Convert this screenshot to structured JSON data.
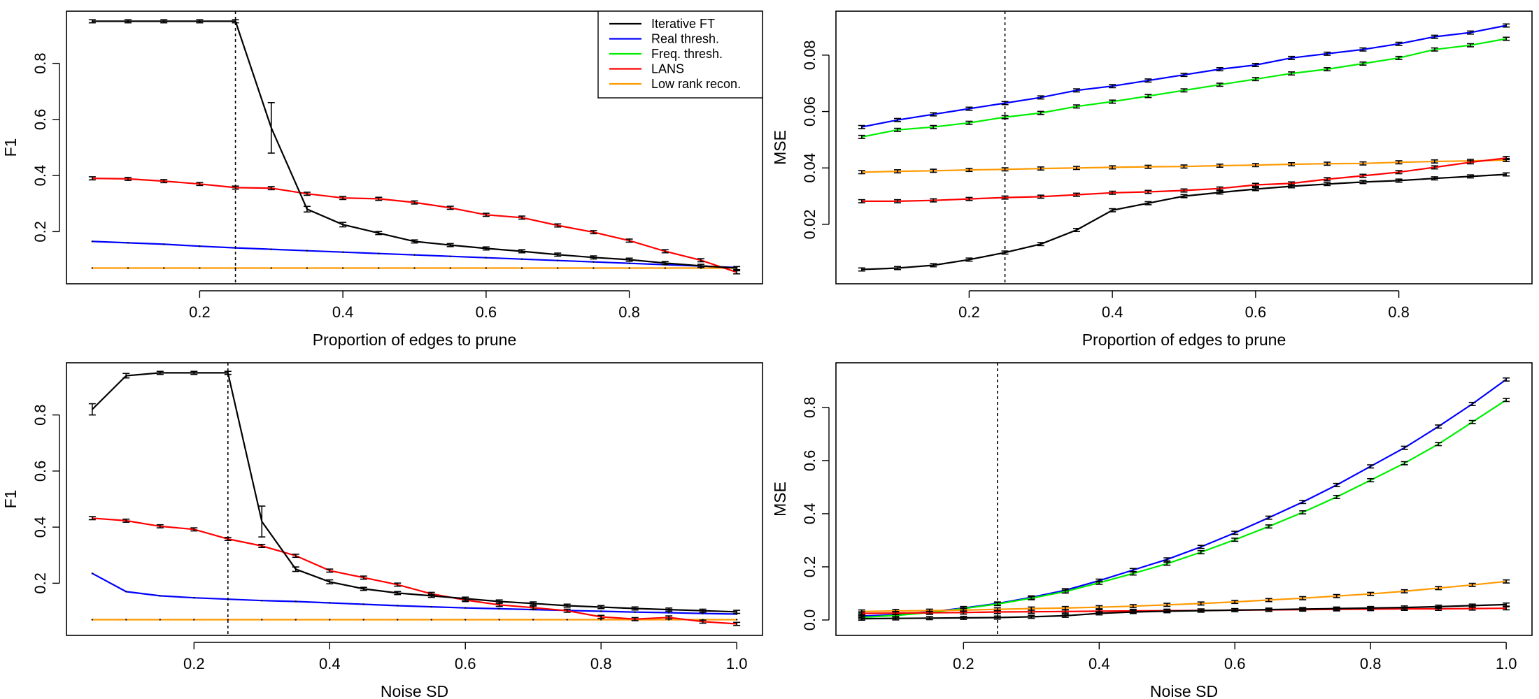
{
  "figure": {
    "reference_line_style": "dotted",
    "colors": {
      "Iterative FT": "#000000",
      "Real thresh.": "#0000ff",
      "Freq. thresh.": "#00ee00",
      "LANS": "#ff0000",
      "Low rank recon.": "#ff9900"
    }
  },
  "chart_data": [
    {
      "id": "tl",
      "type": "line",
      "xlabel": "Proportion of edges to prune",
      "ylabel": "F1",
      "xlim": [
        0.05,
        0.95
      ],
      "ylim": [
        0.05,
        0.95
      ],
      "xticks": [
        0.2,
        0.4,
        0.6,
        0.8
      ],
      "xtick_labels": [
        "0.2",
        "0.4",
        "0.6",
        "0.8"
      ],
      "yticks": [
        0.2,
        0.4,
        0.6,
        0.8
      ],
      "ytick_labels": [
        "0.2",
        "0.4",
        "0.6",
        "0.8"
      ],
      "vline": 0.25,
      "legend": {
        "position": "top-right",
        "entries": [
          "Iterative FT",
          "Real thresh.",
          "Freq. thresh.",
          "LANS",
          "Low rank recon."
        ]
      },
      "x": [
        0.05,
        0.1,
        0.15,
        0.2,
        0.25,
        0.3,
        0.35,
        0.4,
        0.45,
        0.5,
        0.55,
        0.6,
        0.65,
        0.7,
        0.75,
        0.8,
        0.85,
        0.9,
        0.95
      ],
      "series": [
        {
          "name": "Low rank recon.",
          "values": [
            0.07,
            0.07,
            0.07,
            0.07,
            0.07,
            0.07,
            0.07,
            0.07,
            0.07,
            0.07,
            0.07,
            0.07,
            0.07,
            0.07,
            0.07,
            0.07,
            0.07,
            0.07,
            0.07
          ]
        },
        {
          "name": "Real thresh.",
          "values": [
            0.165,
            0.16,
            0.155,
            0.148,
            0.142,
            0.137,
            0.132,
            0.127,
            0.122,
            0.117,
            0.112,
            0.107,
            0.102,
            0.097,
            0.092,
            0.087,
            0.082,
            0.077,
            0.072
          ]
        },
        {
          "name": "LANS",
          "values": [
            0.39,
            0.388,
            0.38,
            0.37,
            0.357,
            0.355,
            0.335,
            0.32,
            0.317,
            0.304,
            0.285,
            0.26,
            0.25,
            0.222,
            0.198,
            0.168,
            0.13,
            0.098,
            0.055
          ],
          "errbar": true
        },
        {
          "name": "Iterative FT",
          "values": [
            0.95,
            0.95,
            0.95,
            0.95,
            0.95,
            0.57,
            0.28,
            0.225,
            0.195,
            0.165,
            0.152,
            0.14,
            0.13,
            0.118,
            0.108,
            0.1,
            0.088,
            0.078,
            0.07
          ],
          "errbar": true,
          "err": [
            0,
            0,
            0,
            0,
            0,
            0.09,
            0.01,
            0.008,
            0,
            0,
            0,
            0,
            0,
            0,
            0,
            0,
            0,
            0,
            0
          ]
        }
      ]
    },
    {
      "id": "tr",
      "type": "line",
      "xlabel": "Proportion of edges to prune",
      "ylabel": "MSE",
      "xlim": [
        0.05,
        0.95
      ],
      "ylim": [
        0.0025,
        0.092
      ],
      "xticks": [
        0.2,
        0.4,
        0.6,
        0.8
      ],
      "xtick_labels": [
        "0.2",
        "0.4",
        "0.6",
        "0.8"
      ],
      "yticks": [
        0.02,
        0.04,
        0.06,
        0.08
      ],
      "ytick_labels": [
        "0.02",
        "0.04",
        "0.06",
        "0.08"
      ],
      "vline": 0.25,
      "x": [
        0.05,
        0.1,
        0.15,
        0.2,
        0.25,
        0.3,
        0.35,
        0.4,
        0.45,
        0.5,
        0.55,
        0.6,
        0.65,
        0.7,
        0.75,
        0.8,
        0.85,
        0.9,
        0.95
      ],
      "series": [
        {
          "name": "Real thresh.",
          "values": [
            0.0545,
            0.057,
            0.059,
            0.061,
            0.063,
            0.065,
            0.0675,
            0.069,
            0.071,
            0.073,
            0.075,
            0.0765,
            0.079,
            0.0805,
            0.082,
            0.084,
            0.0865,
            0.088,
            0.0905
          ],
          "errbar": true
        },
        {
          "name": "Freq. thresh.",
          "values": [
            0.051,
            0.0535,
            0.0545,
            0.056,
            0.058,
            0.0595,
            0.0618,
            0.0635,
            0.0655,
            0.0675,
            0.0695,
            0.0715,
            0.0735,
            0.075,
            0.077,
            0.079,
            0.082,
            0.0835,
            0.0858
          ],
          "errbar": true
        },
        {
          "name": "Low rank recon.",
          "values": [
            0.0385,
            0.0388,
            0.039,
            0.0393,
            0.0395,
            0.0398,
            0.04,
            0.0402,
            0.0404,
            0.0405,
            0.0408,
            0.041,
            0.0413,
            0.0415,
            0.0416,
            0.042,
            0.0423,
            0.0425,
            0.0428
          ],
          "errbar": true
        },
        {
          "name": "LANS",
          "values": [
            0.0282,
            0.0282,
            0.0285,
            0.029,
            0.0295,
            0.0298,
            0.0305,
            0.0312,
            0.0315,
            0.032,
            0.0327,
            0.034,
            0.0345,
            0.036,
            0.0372,
            0.0385,
            0.0402,
            0.042,
            0.0435
          ],
          "errbar": true
        },
        {
          "name": "Iterative FT",
          "values": [
            0.004,
            0.0045,
            0.0055,
            0.0075,
            0.01,
            0.013,
            0.018,
            0.025,
            0.0275,
            0.03,
            0.0313,
            0.0325,
            0.0335,
            0.0343,
            0.035,
            0.0355,
            0.0363,
            0.037,
            0.0377
          ],
          "errbar": true
        }
      ]
    },
    {
      "id": "bl",
      "type": "line",
      "xlabel": "Noise SD",
      "ylabel": "F1",
      "xlim": [
        0.05,
        1.0
      ],
      "ylim": [
        0.05,
        0.95
      ],
      "xticks": [
        0.2,
        0.4,
        0.6,
        0.8,
        1.0
      ],
      "xtick_labels": [
        "0.2",
        "0.4",
        "0.6",
        "0.8",
        "1.0"
      ],
      "yticks": [
        0.2,
        0.4,
        0.6,
        0.8
      ],
      "ytick_labels": [
        "0.2",
        "0.4",
        "0.6",
        "0.8"
      ],
      "vline": 0.25,
      "x": [
        0.05,
        0.1,
        0.15,
        0.2,
        0.25,
        0.3,
        0.35,
        0.4,
        0.45,
        0.5,
        0.55,
        0.6,
        0.65,
        0.7,
        0.75,
        0.8,
        0.85,
        0.9,
        0.95,
        1.0
      ],
      "series": [
        {
          "name": "Low rank recon.",
          "values": [
            0.07,
            0.07,
            0.07,
            0.07,
            0.07,
            0.07,
            0.07,
            0.07,
            0.07,
            0.07,
            0.07,
            0.07,
            0.07,
            0.07,
            0.07,
            0.07,
            0.07,
            0.07,
            0.07,
            0.07
          ]
        },
        {
          "name": "Real thresh.",
          "values": [
            0.235,
            0.17,
            0.155,
            0.148,
            0.143,
            0.138,
            0.135,
            0.13,
            0.125,
            0.12,
            0.116,
            0.112,
            0.109,
            0.106,
            0.103,
            0.1,
            0.097,
            0.095,
            0.092,
            0.09
          ]
        },
        {
          "name": "LANS",
          "values": [
            0.432,
            0.423,
            0.403,
            0.392,
            0.358,
            0.333,
            0.298,
            0.245,
            0.22,
            0.195,
            0.162,
            0.14,
            0.123,
            0.113,
            0.102,
            0.08,
            0.072,
            0.078,
            0.063,
            0.055
          ],
          "errbar": true
        },
        {
          "name": "Iterative FT",
          "values": [
            0.82,
            0.94,
            0.95,
            0.95,
            0.95,
            0.42,
            0.25,
            0.205,
            0.18,
            0.165,
            0.155,
            0.145,
            0.135,
            0.128,
            0.12,
            0.115,
            0.11,
            0.106,
            0.102,
            0.098
          ],
          "errbar": true,
          "err": [
            0.02,
            0.008,
            0,
            0,
            0,
            0.055,
            0.008,
            0.007,
            0,
            0,
            0,
            0,
            0,
            0,
            0,
            0,
            0,
            0,
            0,
            0
          ]
        }
      ]
    },
    {
      "id": "br",
      "type": "line",
      "xlabel": "Noise SD",
      "ylabel": "MSE",
      "xlim": [
        0.05,
        1.0
      ],
      "ylim": [
        -0.02,
        0.93
      ],
      "xticks": [
        0.2,
        0.4,
        0.6,
        0.8,
        1.0
      ],
      "xtick_labels": [
        "0.2",
        "0.4",
        "0.6",
        "0.8",
        "1.0"
      ],
      "yticks": [
        0.0,
        0.2,
        0.4,
        0.6,
        0.8
      ],
      "ytick_labels": [
        "0.0",
        "0.2",
        "0.4",
        "0.6",
        "0.8"
      ],
      "vline": 0.25,
      "x": [
        0.05,
        0.1,
        0.15,
        0.2,
        0.25,
        0.3,
        0.35,
        0.4,
        0.45,
        0.5,
        0.55,
        0.6,
        0.65,
        0.7,
        0.75,
        0.8,
        0.85,
        0.9,
        0.95,
        1.0
      ],
      "series": [
        {
          "name": "Real thresh.",
          "values": [
            0.015,
            0.02,
            0.03,
            0.045,
            0.062,
            0.085,
            0.112,
            0.148,
            0.188,
            0.228,
            0.275,
            0.328,
            0.385,
            0.444,
            0.508,
            0.578,
            0.648,
            0.728,
            0.813,
            0.905
          ],
          "errbar": true
        },
        {
          "name": "Freq. thresh.",
          "values": [
            0.01,
            0.017,
            0.028,
            0.043,
            0.06,
            0.082,
            0.107,
            0.14,
            0.175,
            0.212,
            0.255,
            0.302,
            0.352,
            0.405,
            0.463,
            0.526,
            0.59,
            0.662,
            0.745,
            0.828
          ],
          "errbar": true
        },
        {
          "name": "Low rank recon.",
          "values": [
            0.032,
            0.034,
            0.035,
            0.037,
            0.04,
            0.043,
            0.045,
            0.048,
            0.052,
            0.057,
            0.062,
            0.068,
            0.075,
            0.082,
            0.09,
            0.098,
            0.108,
            0.12,
            0.132,
            0.145
          ],
          "errbar": true
        },
        {
          "name": "LANS",
          "values": [
            0.025,
            0.026,
            0.027,
            0.028,
            0.03,
            0.031,
            0.032,
            0.033,
            0.034,
            0.035,
            0.036,
            0.037,
            0.038,
            0.039,
            0.04,
            0.041,
            0.042,
            0.042,
            0.043,
            0.044
          ],
          "errbar": true
        },
        {
          "name": "Iterative FT",
          "values": [
            0.005,
            0.006,
            0.007,
            0.008,
            0.009,
            0.012,
            0.016,
            0.025,
            0.03,
            0.033,
            0.035,
            0.037,
            0.039,
            0.041,
            0.043,
            0.045,
            0.047,
            0.05,
            0.054,
            0.058
          ],
          "errbar": true
        }
      ]
    }
  ]
}
